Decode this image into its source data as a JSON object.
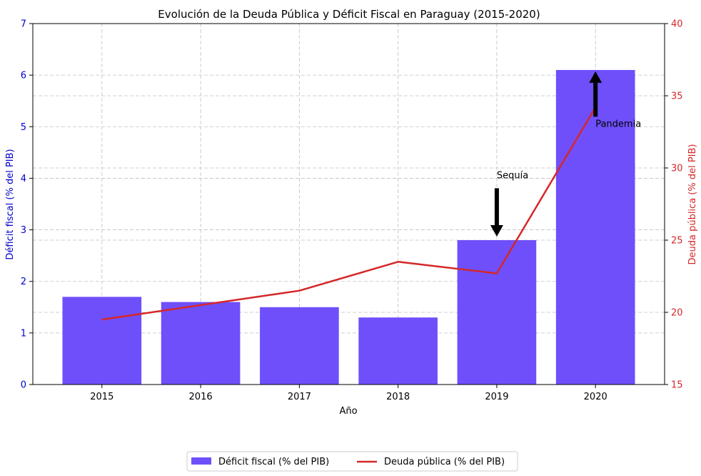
{
  "chart_data": {
    "type": "bar+line",
    "title": "Evolución de la Deuda Pública y Déficit Fiscal en Paraguay (2015-2020)",
    "xlabel": "Año",
    "ylabel_left": "Déficit fiscal (% del PIB)",
    "ylabel_right": "Deuda pública (% del PIB)",
    "categories": [
      "2015",
      "2016",
      "2017",
      "2018",
      "2019",
      "2020"
    ],
    "ylim_left": [
      0,
      7
    ],
    "ylim_right": [
      15,
      40
    ],
    "yticks_left": [
      "0",
      "1",
      "2",
      "3",
      "4",
      "5",
      "6",
      "7"
    ],
    "yticks_right": [
      "15",
      "20",
      "25",
      "30",
      "35",
      "40"
    ],
    "grid": true,
    "legend_placement": "bottom-center",
    "series": [
      {
        "name": "Déficit fiscal (% del PIB)",
        "type": "bar",
        "axis": "left",
        "color": "#6f4ffa",
        "values": [
          1.7,
          1.6,
          1.5,
          1.3,
          2.8,
          6.1
        ]
      },
      {
        "name": "Deuda pública (% del PIB)",
        "type": "line",
        "axis": "right",
        "color": "#d62728",
        "values": [
          19.5,
          20.5,
          21.5,
          23.5,
          22.7,
          34.2
        ]
      }
    ],
    "annotations": [
      {
        "text": "Sequía",
        "category": "2019",
        "value": 4.0
      },
      {
        "text": "Pandemia",
        "category": "2020",
        "value": 5.0
      }
    ],
    "left_axis_color": "#0000cc",
    "right_axis_color": "#d62728"
  }
}
